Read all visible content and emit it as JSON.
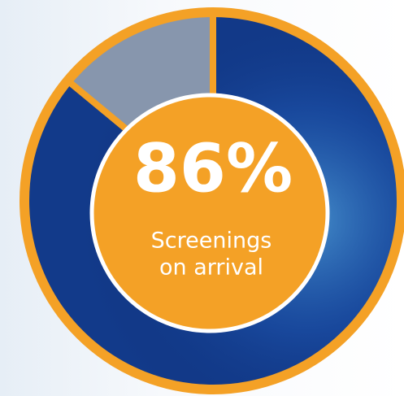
{
  "chart_data": {
    "type": "pie",
    "values": [
      86,
      14
    ],
    "value_labels": [
      "86%",
      null
    ],
    "colors": [
      "#123a8a",
      "#8796ad"
    ],
    "ring_color": "#f4a126",
    "center_label_lines": [
      "Screenings",
      "on arrival"
    ]
  }
}
